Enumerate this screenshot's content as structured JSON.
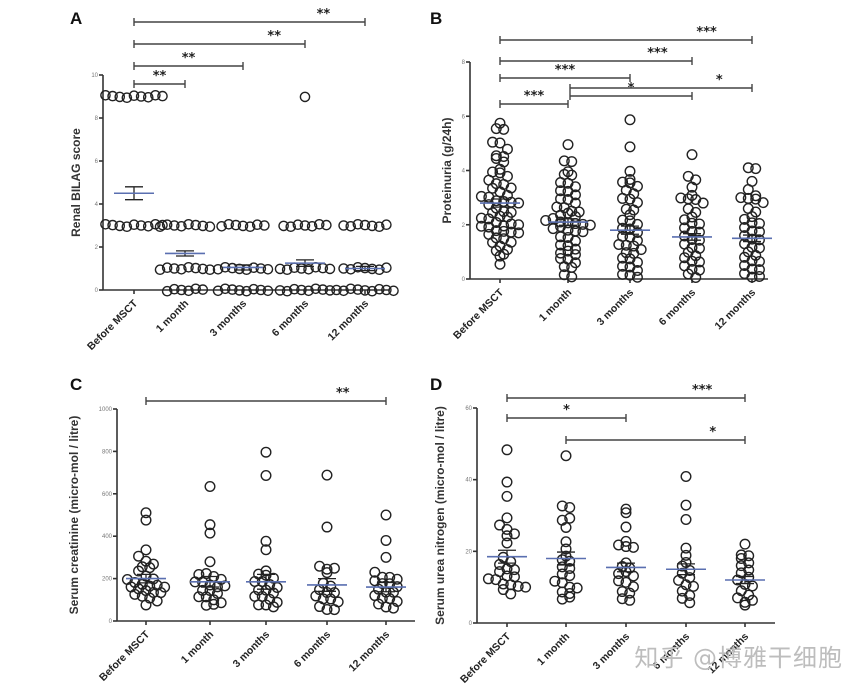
{
  "watermark": "知乎 @博雅干细胞",
  "chart_data": [
    {
      "id": "A",
      "type": "scatter",
      "panel_label": "A",
      "title": "",
      "xlabel": "",
      "ylabel": "Renal BILAG score",
      "categories": [
        "Before MSCT",
        "1 month",
        "3 months",
        "6 months",
        "12 months"
      ],
      "ylim": [
        0,
        10
      ],
      "yticks": [
        0,
        2,
        4,
        6,
        8,
        10
      ],
      "grid": false,
      "points": [
        [
          9,
          9,
          9,
          9,
          9,
          9,
          9,
          9,
          9,
          3,
          3,
          3,
          3,
          3,
          3,
          3,
          3,
          3
        ],
        [
          3,
          3,
          3,
          3,
          3,
          3,
          3,
          3,
          1,
          1,
          1,
          1,
          1,
          1,
          1,
          1,
          0,
          0,
          0,
          0,
          0,
          0
        ],
        [
          3,
          3,
          3,
          3,
          3,
          3,
          3,
          1,
          1,
          1,
          1,
          1,
          1,
          1,
          1,
          0,
          0,
          0,
          0,
          0,
          0,
          0,
          0
        ],
        [
          9,
          3,
          3,
          3,
          3,
          3,
          3,
          3,
          1,
          1,
          1,
          1,
          1,
          1,
          1,
          1,
          0,
          0,
          0,
          0,
          0,
          0,
          0,
          0
        ],
        [
          3,
          3,
          3,
          3,
          3,
          3,
          3,
          1,
          1,
          1,
          1,
          1,
          1,
          1,
          0,
          0,
          0,
          0,
          0,
          0,
          0,
          0,
          0
        ]
      ],
      "mean": [
        4.5,
        1.7,
        1.05,
        1.25,
        1.0
      ],
      "sem": [
        0.3,
        0.12,
        0.12,
        0.15,
        0.1
      ],
      "significance": [
        {
          "from": 0,
          "to": 1,
          "label": "**"
        },
        {
          "from": 0,
          "to": 2,
          "label": "**"
        },
        {
          "from": 0,
          "to": 3,
          "label": "**"
        },
        {
          "from": 0,
          "to": 4,
          "label": "**"
        }
      ]
    },
    {
      "id": "B",
      "type": "scatter",
      "panel_label": "B",
      "title": "",
      "xlabel": "",
      "ylabel": "Proteinuria (g/24h)",
      "categories": [
        "Before MSCT",
        "1 month",
        "3 months",
        "6 months",
        "12 months"
      ],
      "ylim": [
        0,
        8
      ],
      "yticks": [
        0,
        2,
        4,
        6,
        8
      ],
      "grid": false,
      "points": [
        [
          5.7,
          5.5,
          5.5,
          5.0,
          5.0,
          4.8,
          4.5,
          4.5,
          4.4,
          4.3,
          4.0,
          3.9,
          3.9,
          3.8,
          3.6,
          3.5,
          3.5,
          3.4,
          3.3,
          3.2,
          3.1,
          3.0,
          3.0,
          2.9,
          2.9,
          2.8,
          2.8,
          2.7,
          2.6,
          2.5,
          2.5,
          2.4,
          2.3,
          2.3,
          2.2,
          2.2,
          2.1,
          2.0,
          2.0,
          2.0,
          1.9,
          1.9,
          1.8,
          1.8,
          1.7,
          1.7,
          1.6,
          1.5,
          1.5,
          1.4,
          1.3,
          1.2,
          1.1,
          1.0,
          0.9,
          0.8,
          0.5
        ],
        [
          5.0,
          4.4,
          4.3,
          4.0,
          3.9,
          3.8,
          3.6,
          3.5,
          3.4,
          3.3,
          3.2,
          3.1,
          3.0,
          2.9,
          2.8,
          2.7,
          2.6,
          2.5,
          2.5,
          2.4,
          2.4,
          2.3,
          2.2,
          2.2,
          2.1,
          2.1,
          2.0,
          2.0,
          2.0,
          1.9,
          1.9,
          1.8,
          1.8,
          1.7,
          1.6,
          1.5,
          1.4,
          1.3,
          1.2,
          1.1,
          1.0,
          1.0,
          0.9,
          0.8,
          0.7,
          0.6,
          0.5,
          0.4,
          0.2,
          0.05
        ],
        [
          5.9,
          4.9,
          4.0,
          3.7,
          3.6,
          3.5,
          3.4,
          3.3,
          3.1,
          3.0,
          2.9,
          2.8,
          2.6,
          2.5,
          2.4,
          2.2,
          2.1,
          2.0,
          1.9,
          1.8,
          1.7,
          1.6,
          1.5,
          1.4,
          1.3,
          1.2,
          1.2,
          1.1,
          1.0,
          0.9,
          0.8,
          0.7,
          0.6,
          0.5,
          0.4,
          0.3,
          0.2,
          0.1,
          0.05
        ],
        [
          4.6,
          3.8,
          3.7,
          3.4,
          3.1,
          3.0,
          3.0,
          2.9,
          2.8,
          2.6,
          2.5,
          2.3,
          2.2,
          2.1,
          2.0,
          1.9,
          1.8,
          1.7,
          1.6,
          1.5,
          1.4,
          1.3,
          1.2,
          1.1,
          1.0,
          0.9,
          0.8,
          0.7,
          0.6,
          0.5,
          0.4,
          0.3,
          0.2,
          0.1
        ],
        [
          4.1,
          4.1,
          3.6,
          3.3,
          3.1,
          3.0,
          3.0,
          2.9,
          2.8,
          2.6,
          2.5,
          2.3,
          2.2,
          2.1,
          2.0,
          1.9,
          1.8,
          1.7,
          1.6,
          1.5,
          1.4,
          1.3,
          1.2,
          1.1,
          1.0,
          0.9,
          0.8,
          0.7,
          0.6,
          0.5,
          0.4,
          0.3,
          0.2,
          0.1,
          0.05
        ]
      ],
      "mean": [
        2.8,
        2.1,
        1.8,
        1.55,
        1.5
      ],
      "sem": [
        0.15,
        0.12,
        0.15,
        0.12,
        0.12
      ],
      "significance": [
        {
          "from": 0,
          "to": 1,
          "label": "***"
        },
        {
          "from": 1,
          "to": 3,
          "label": "*"
        },
        {
          "from": 1,
          "to": 4,
          "label": "*"
        },
        {
          "from": 0,
          "to": 2,
          "label": "***"
        },
        {
          "from": 0,
          "to": 3,
          "label": "***"
        },
        {
          "from": 0,
          "to": 4,
          "label": "***"
        }
      ]
    },
    {
      "id": "C",
      "type": "scatter",
      "panel_label": "C",
      "title": "",
      "xlabel": "",
      "ylabel": "Serum creatinine (micro-mol / litre)",
      "categories": [
        "Before MSCT",
        "1 month",
        "3 months",
        "6 months",
        "12 months"
      ],
      "ylim": [
        0,
        1000
      ],
      "yticks": [
        0,
        200,
        400,
        600,
        800,
        1000
      ],
      "grid": false,
      "points": [
        [
          505,
          470,
          330,
          300,
          280,
          270,
          250,
          250,
          230,
          210,
          200,
          190,
          180,
          175,
          170,
          165,
          160,
          155,
          150,
          145,
          140,
          130,
          120,
          115,
          110,
          100,
          70
        ],
        [
          640,
          460,
          420,
          285,
          225,
          220,
          210,
          200,
          190,
          180,
          170,
          165,
          160,
          150,
          140,
          130,
          120,
          110,
          100,
          90,
          80,
          75
        ],
        [
          800,
          690,
          380,
          340,
          240,
          225,
          210,
          200,
          190,
          180,
          170,
          160,
          150,
          140,
          130,
          120,
          110,
          100,
          90,
          80,
          70,
          65
        ],
        [
          690,
          445,
          260,
          250,
          245,
          230,
          180,
          170,
          150,
          140,
          130,
          120,
          110,
          100,
          90,
          70,
          60,
          50
        ],
        [
          500,
          380,
          300,
          230,
          210,
          200,
          195,
          190,
          180,
          170,
          160,
          150,
          140,
          130,
          120,
          110,
          100,
          90,
          80,
          70,
          55
        ]
      ],
      "mean": [
        200,
        185,
        185,
        170,
        160
      ],
      "sem": [
        20,
        25,
        35,
        30,
        22
      ],
      "significance": [
        {
          "from": 0,
          "to": 4,
          "label": "**"
        }
      ]
    },
    {
      "id": "D",
      "type": "scatter",
      "panel_label": "D",
      "title": "",
      "xlabel": "",
      "ylabel": "Serum urea nitrogen (micro-mol / litre)",
      "categories": [
        "Before MSCT",
        "1 month",
        "3 months",
        "6 months",
        "12 months"
      ],
      "ylim": [
        0,
        60
      ],
      "yticks": [
        0,
        20,
        40,
        60
      ],
      "grid": false,
      "points": [
        [
          48,
          39,
          35,
          29,
          27,
          26,
          25,
          24,
          22,
          18,
          17,
          16,
          15,
          15,
          14,
          13,
          13,
          12,
          12,
          11,
          11,
          10,
          10,
          9,
          8
        ],
        [
          47,
          33,
          32,
          29,
          29,
          27,
          23,
          21,
          19,
          18,
          17,
          16,
          15,
          14,
          13,
          12,
          11,
          10,
          10,
          9,
          8,
          7,
          7
        ],
        [
          32,
          31,
          27,
          23,
          22,
          21,
          21,
          17,
          16,
          15,
          14,
          14,
          13,
          12,
          11,
          10,
          9,
          8,
          7,
          6
        ],
        [
          41,
          33,
          29,
          21,
          19,
          17,
          16,
          15,
          14,
          13,
          12,
          11,
          10,
          9,
          8,
          7,
          6
        ],
        [
          22,
          19,
          19,
          18,
          17,
          16,
          15,
          14,
          13,
          12,
          11,
          10,
          9,
          8,
          7,
          6,
          6,
          5
        ]
      ],
      "mean": [
        18.5,
        18,
        15.5,
        15,
        12
      ],
      "sem": [
        1.8,
        1.8,
        1.2,
        1.5,
        1.0
      ],
      "significance": [
        {
          "from": 0,
          "to": 2,
          "label": "*"
        },
        {
          "from": 1,
          "to": 4,
          "label": "*"
        },
        {
          "from": 0,
          "to": 4,
          "label": "***"
        }
      ]
    }
  ]
}
